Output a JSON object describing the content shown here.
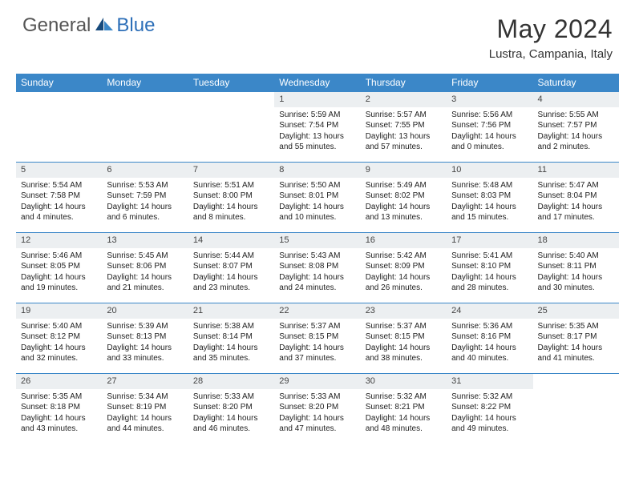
{
  "brand": {
    "general": "General",
    "blue": "Blue"
  },
  "title": "May 2024",
  "location": "Lustra, Campania, Italy",
  "colors": {
    "header_bg": "#3b87c8",
    "header_text": "#ffffff",
    "daynum_bg": "#eceff1",
    "sep_color": "#3b87c8",
    "text": "#222222",
    "brand_gray": "#555555",
    "brand_blue": "#2d6fb8"
  },
  "daynames": [
    "Sunday",
    "Monday",
    "Tuesday",
    "Wednesday",
    "Thursday",
    "Friday",
    "Saturday"
  ],
  "weeks": [
    [
      {
        "n": "",
        "sr": "",
        "ss": "",
        "dl1": "",
        "dl2": ""
      },
      {
        "n": "",
        "sr": "",
        "ss": "",
        "dl1": "",
        "dl2": ""
      },
      {
        "n": "",
        "sr": "",
        "ss": "",
        "dl1": "",
        "dl2": ""
      },
      {
        "n": "1",
        "sr": "Sunrise: 5:59 AM",
        "ss": "Sunset: 7:54 PM",
        "dl1": "Daylight: 13 hours",
        "dl2": "and 55 minutes."
      },
      {
        "n": "2",
        "sr": "Sunrise: 5:57 AM",
        "ss": "Sunset: 7:55 PM",
        "dl1": "Daylight: 13 hours",
        "dl2": "and 57 minutes."
      },
      {
        "n": "3",
        "sr": "Sunrise: 5:56 AM",
        "ss": "Sunset: 7:56 PM",
        "dl1": "Daylight: 14 hours",
        "dl2": "and 0 minutes."
      },
      {
        "n": "4",
        "sr": "Sunrise: 5:55 AM",
        "ss": "Sunset: 7:57 PM",
        "dl1": "Daylight: 14 hours",
        "dl2": "and 2 minutes."
      }
    ],
    [
      {
        "n": "5",
        "sr": "Sunrise: 5:54 AM",
        "ss": "Sunset: 7:58 PM",
        "dl1": "Daylight: 14 hours",
        "dl2": "and 4 minutes."
      },
      {
        "n": "6",
        "sr": "Sunrise: 5:53 AM",
        "ss": "Sunset: 7:59 PM",
        "dl1": "Daylight: 14 hours",
        "dl2": "and 6 minutes."
      },
      {
        "n": "7",
        "sr": "Sunrise: 5:51 AM",
        "ss": "Sunset: 8:00 PM",
        "dl1": "Daylight: 14 hours",
        "dl2": "and 8 minutes."
      },
      {
        "n": "8",
        "sr": "Sunrise: 5:50 AM",
        "ss": "Sunset: 8:01 PM",
        "dl1": "Daylight: 14 hours",
        "dl2": "and 10 minutes."
      },
      {
        "n": "9",
        "sr": "Sunrise: 5:49 AM",
        "ss": "Sunset: 8:02 PM",
        "dl1": "Daylight: 14 hours",
        "dl2": "and 13 minutes."
      },
      {
        "n": "10",
        "sr": "Sunrise: 5:48 AM",
        "ss": "Sunset: 8:03 PM",
        "dl1": "Daylight: 14 hours",
        "dl2": "and 15 minutes."
      },
      {
        "n": "11",
        "sr": "Sunrise: 5:47 AM",
        "ss": "Sunset: 8:04 PM",
        "dl1": "Daylight: 14 hours",
        "dl2": "and 17 minutes."
      }
    ],
    [
      {
        "n": "12",
        "sr": "Sunrise: 5:46 AM",
        "ss": "Sunset: 8:05 PM",
        "dl1": "Daylight: 14 hours",
        "dl2": "and 19 minutes."
      },
      {
        "n": "13",
        "sr": "Sunrise: 5:45 AM",
        "ss": "Sunset: 8:06 PM",
        "dl1": "Daylight: 14 hours",
        "dl2": "and 21 minutes."
      },
      {
        "n": "14",
        "sr": "Sunrise: 5:44 AM",
        "ss": "Sunset: 8:07 PM",
        "dl1": "Daylight: 14 hours",
        "dl2": "and 23 minutes."
      },
      {
        "n": "15",
        "sr": "Sunrise: 5:43 AM",
        "ss": "Sunset: 8:08 PM",
        "dl1": "Daylight: 14 hours",
        "dl2": "and 24 minutes."
      },
      {
        "n": "16",
        "sr": "Sunrise: 5:42 AM",
        "ss": "Sunset: 8:09 PM",
        "dl1": "Daylight: 14 hours",
        "dl2": "and 26 minutes."
      },
      {
        "n": "17",
        "sr": "Sunrise: 5:41 AM",
        "ss": "Sunset: 8:10 PM",
        "dl1": "Daylight: 14 hours",
        "dl2": "and 28 minutes."
      },
      {
        "n": "18",
        "sr": "Sunrise: 5:40 AM",
        "ss": "Sunset: 8:11 PM",
        "dl1": "Daylight: 14 hours",
        "dl2": "and 30 minutes."
      }
    ],
    [
      {
        "n": "19",
        "sr": "Sunrise: 5:40 AM",
        "ss": "Sunset: 8:12 PM",
        "dl1": "Daylight: 14 hours",
        "dl2": "and 32 minutes."
      },
      {
        "n": "20",
        "sr": "Sunrise: 5:39 AM",
        "ss": "Sunset: 8:13 PM",
        "dl1": "Daylight: 14 hours",
        "dl2": "and 33 minutes."
      },
      {
        "n": "21",
        "sr": "Sunrise: 5:38 AM",
        "ss": "Sunset: 8:14 PM",
        "dl1": "Daylight: 14 hours",
        "dl2": "and 35 minutes."
      },
      {
        "n": "22",
        "sr": "Sunrise: 5:37 AM",
        "ss": "Sunset: 8:15 PM",
        "dl1": "Daylight: 14 hours",
        "dl2": "and 37 minutes."
      },
      {
        "n": "23",
        "sr": "Sunrise: 5:37 AM",
        "ss": "Sunset: 8:15 PM",
        "dl1": "Daylight: 14 hours",
        "dl2": "and 38 minutes."
      },
      {
        "n": "24",
        "sr": "Sunrise: 5:36 AM",
        "ss": "Sunset: 8:16 PM",
        "dl1": "Daylight: 14 hours",
        "dl2": "and 40 minutes."
      },
      {
        "n": "25",
        "sr": "Sunrise: 5:35 AM",
        "ss": "Sunset: 8:17 PM",
        "dl1": "Daylight: 14 hours",
        "dl2": "and 41 minutes."
      }
    ],
    [
      {
        "n": "26",
        "sr": "Sunrise: 5:35 AM",
        "ss": "Sunset: 8:18 PM",
        "dl1": "Daylight: 14 hours",
        "dl2": "and 43 minutes."
      },
      {
        "n": "27",
        "sr": "Sunrise: 5:34 AM",
        "ss": "Sunset: 8:19 PM",
        "dl1": "Daylight: 14 hours",
        "dl2": "and 44 minutes."
      },
      {
        "n": "28",
        "sr": "Sunrise: 5:33 AM",
        "ss": "Sunset: 8:20 PM",
        "dl1": "Daylight: 14 hours",
        "dl2": "and 46 minutes."
      },
      {
        "n": "29",
        "sr": "Sunrise: 5:33 AM",
        "ss": "Sunset: 8:20 PM",
        "dl1": "Daylight: 14 hours",
        "dl2": "and 47 minutes."
      },
      {
        "n": "30",
        "sr": "Sunrise: 5:32 AM",
        "ss": "Sunset: 8:21 PM",
        "dl1": "Daylight: 14 hours",
        "dl2": "and 48 minutes."
      },
      {
        "n": "31",
        "sr": "Sunrise: 5:32 AM",
        "ss": "Sunset: 8:22 PM",
        "dl1": "Daylight: 14 hours",
        "dl2": "and 49 minutes."
      },
      {
        "n": "",
        "sr": "",
        "ss": "",
        "dl1": "",
        "dl2": ""
      }
    ]
  ]
}
